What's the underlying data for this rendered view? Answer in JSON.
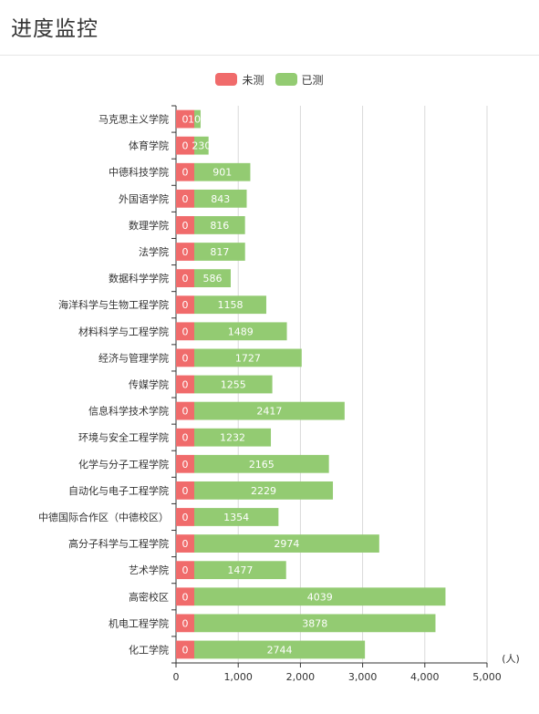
{
  "header": {
    "title": "进度监控"
  },
  "legend": [
    {
      "label": "未测",
      "color": "#f06b6b"
    },
    {
      "label": "已测",
      "color": "#93cb72"
    }
  ],
  "axis": {
    "unit": "(人)"
  },
  "chart_data": {
    "type": "bar",
    "orientation": "horizontal",
    "stacked": true,
    "categories": [
      "马克思主义学院",
      "体育学院",
      "中德科技学院",
      "外国语学院",
      "数理学院",
      "法学院",
      "数据科学学院",
      "海洋科学与生物工程学院",
      "材料科学与工程学院",
      "经济与管理学院",
      "传媒学院",
      "信息科学技术学院",
      "环境与安全工程学院",
      "化学与分子工程学院",
      "自动化与电子工程学院",
      "中德国际合作区（中德校区）",
      "高分子科学与工程学院",
      "艺术学院",
      "高密校区",
      "机电工程学院",
      "化工学院"
    ],
    "series": [
      {
        "name": "未测",
        "color": "#f06b6b",
        "values": [
          0,
          0,
          0,
          0,
          0,
          0,
          0,
          0,
          0,
          0,
          0,
          0,
          0,
          0,
          0,
          0,
          0,
          0,
          0,
          0,
          0
        ]
      },
      {
        "name": "已测",
        "color": "#93cb72",
        "values": [
          102,
          230,
          901,
          843,
          816,
          817,
          586,
          1158,
          1489,
          1727,
          1255,
          2417,
          1232,
          2165,
          2229,
          1354,
          2974,
          1477,
          4039,
          3878,
          2744
        ]
      }
    ],
    "xlim": [
      0,
      5000
    ],
    "xticks": [
      0,
      1000,
      2000,
      3000,
      4000,
      5000
    ],
    "xtick_labels": [
      "0",
      "1,000",
      "2,000",
      "3,000",
      "4,000",
      "5,000"
    ],
    "grid": true,
    "legend_position": "top-center"
  }
}
